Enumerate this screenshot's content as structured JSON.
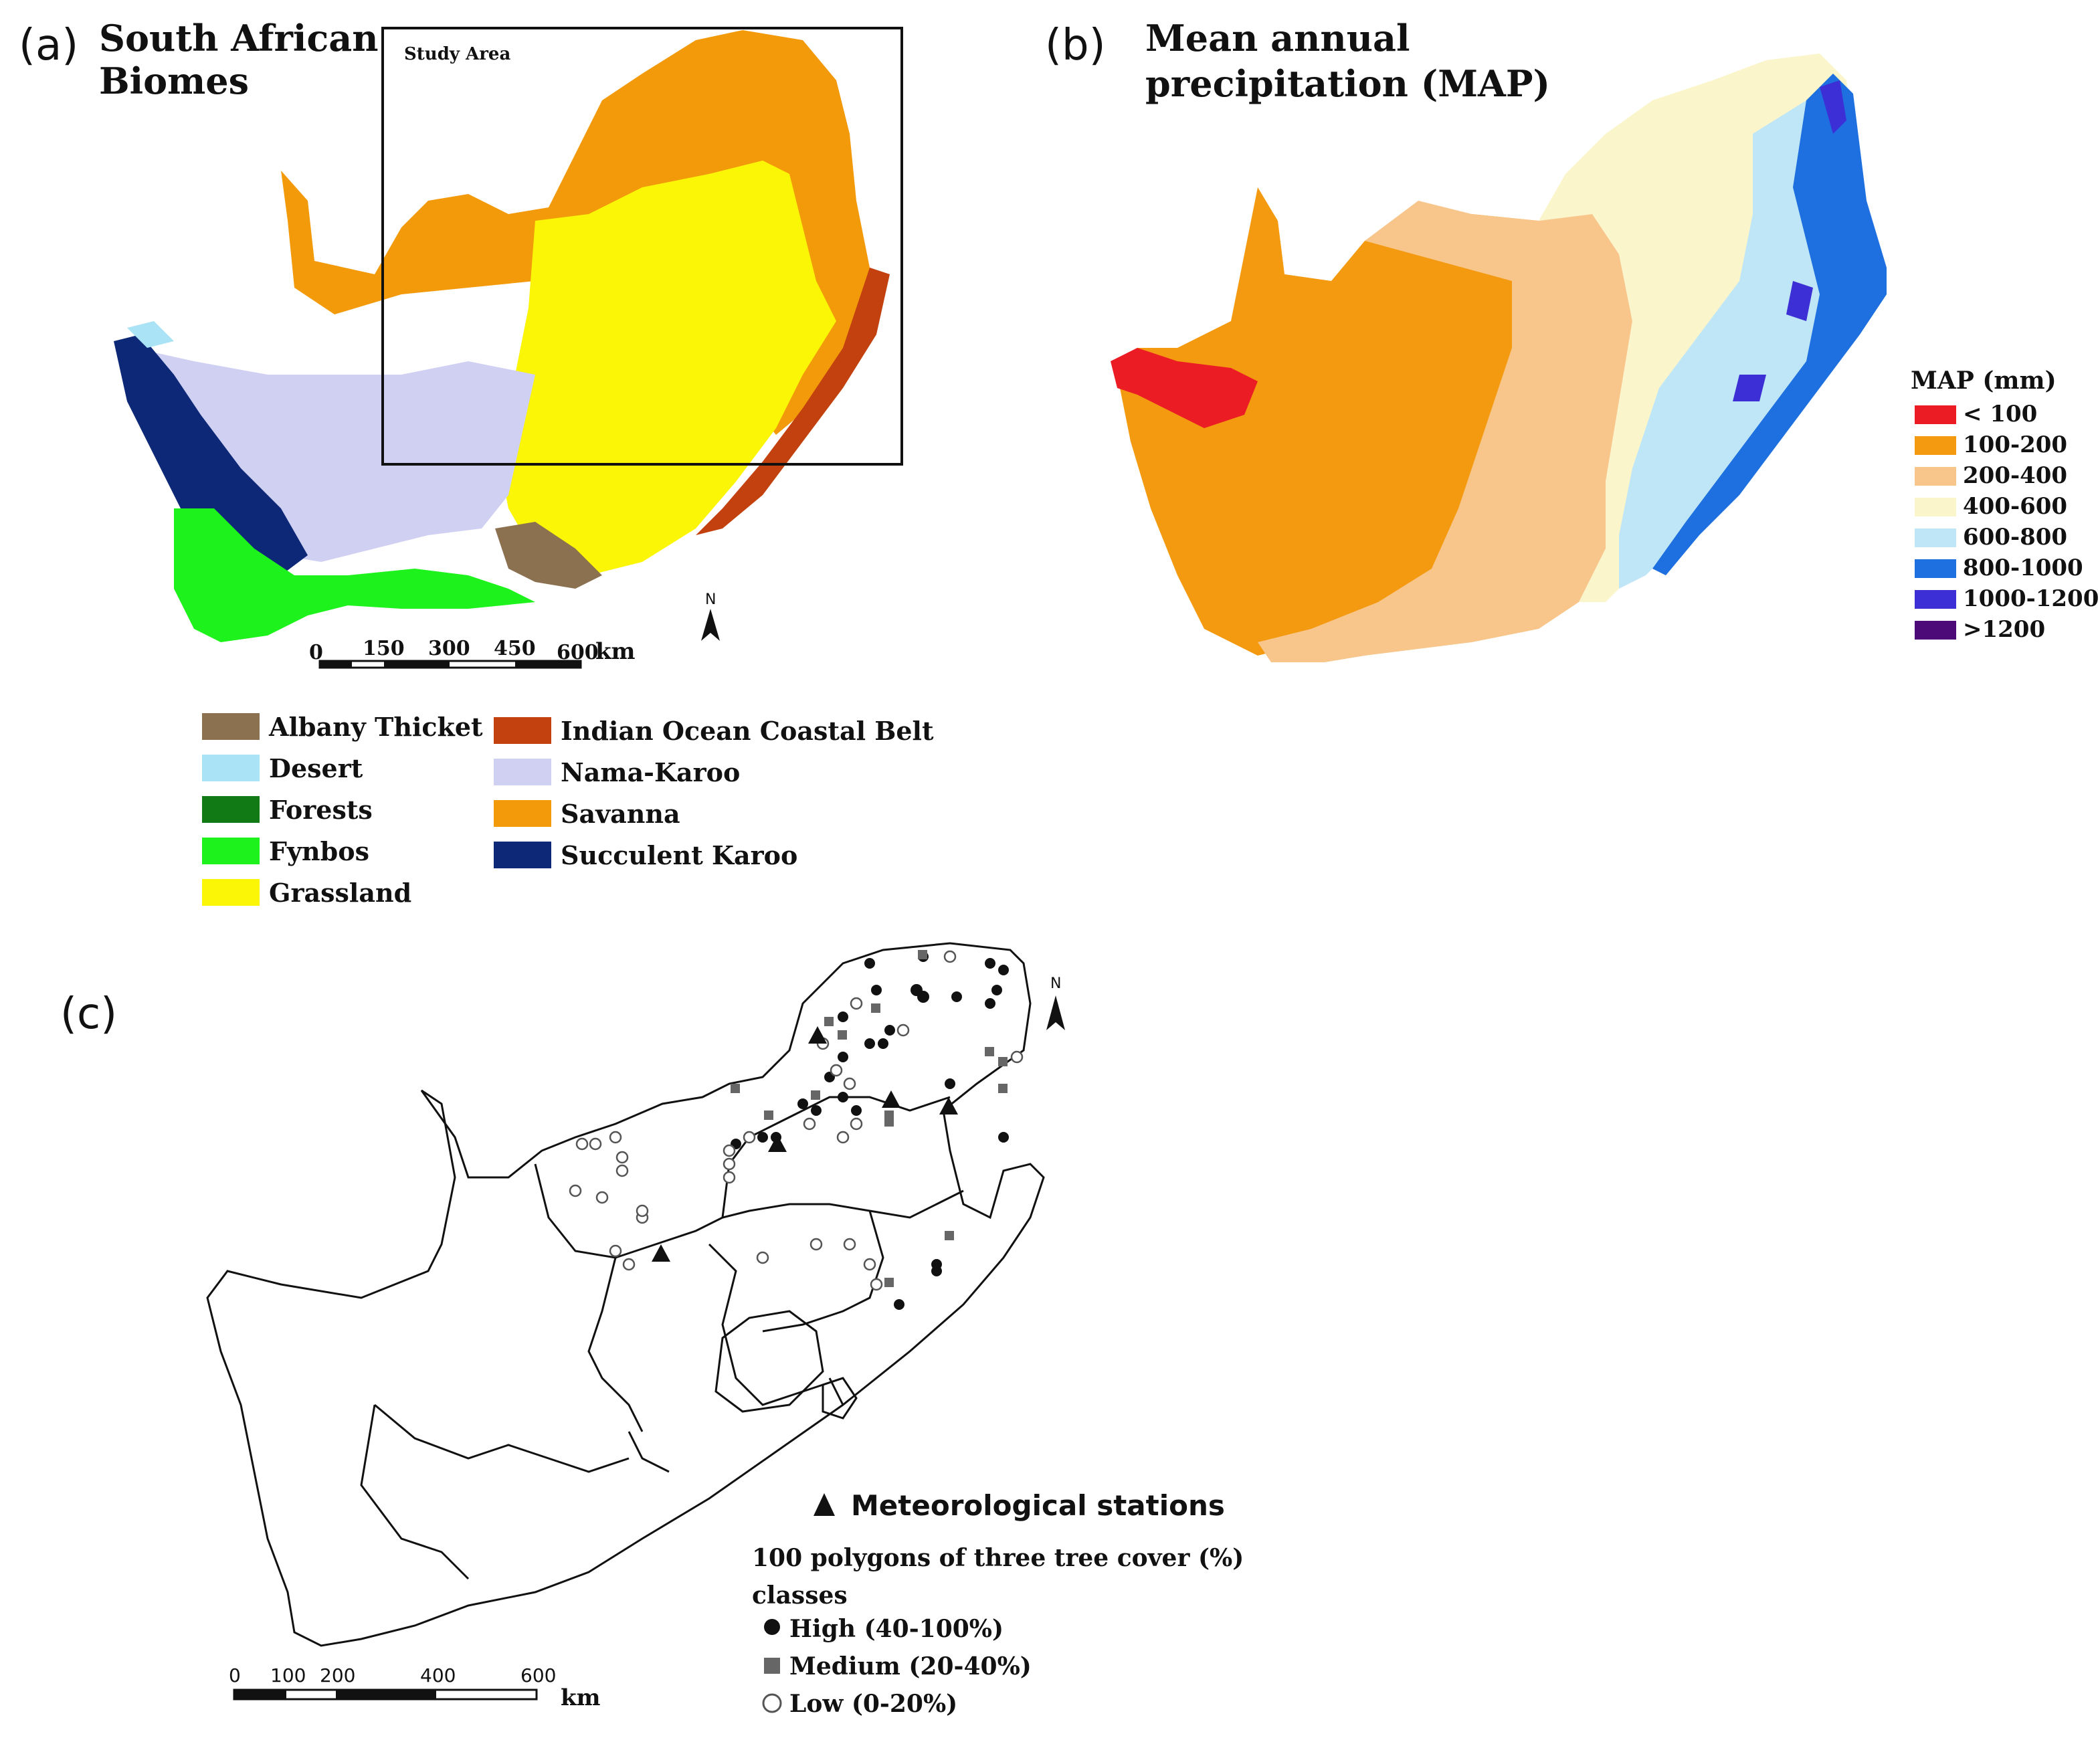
{
  "panel_a": {
    "letter": "(a)",
    "title_line1": "South African",
    "title_line2": "Biomes",
    "study_area_label": "Study Area",
    "north_label": "N",
    "scale": {
      "ticks": [
        "0",
        "150",
        "300",
        "450",
        "600"
      ],
      "unit": "km"
    },
    "legend": [
      {
        "label": "Albany Thicket",
        "color": "#8b7150"
      },
      {
        "label": "Desert",
        "color": "#a9e3f5"
      },
      {
        "label": "Forests",
        "color": "#127a14"
      },
      {
        "label": "Fynbos",
        "color": "#1ef21c"
      },
      {
        "label": "Grassland",
        "color": "#fbf506"
      },
      {
        "label": "Indian Ocean Coastal Belt",
        "color": "#c2410f"
      },
      {
        "label": "Nama-Karoo",
        "color": "#cfd0f2"
      },
      {
        "label": "Savanna",
        "color": "#f39a0b"
      },
      {
        "label": "Succulent Karoo",
        "color": "#0c2877"
      }
    ]
  },
  "panel_b": {
    "letter": "(b)",
    "title_line1": "Mean annual",
    "title_line2": "precipitation (MAP)",
    "legend_title": "MAP (mm)",
    "legend": [
      {
        "label": "< 100",
        "color": "#ec1c24"
      },
      {
        "label": "100-200",
        "color": "#f39a10"
      },
      {
        "label": "200-400",
        "color": "#f8c58a"
      },
      {
        "label": "400-600",
        "color": "#fbf5cc"
      },
      {
        "label": "600-800",
        "color": "#bfe6f6"
      },
      {
        "label": "800-1000",
        "color": "#1e6fe0"
      },
      {
        "label": "1000-1200",
        "color": "#3d2fd6"
      },
      {
        "label": ">1200",
        "color": "#4b0a78"
      }
    ]
  },
  "panel_c": {
    "letter": "(c)",
    "north_label": "N",
    "scale": {
      "ticks": [
        "0",
        "100",
        "200",
        "400",
        "600"
      ],
      "unit": "km"
    },
    "met_label": "Meteorological stations",
    "polygons_title_line1": "100 polygons of three tree cover (%)",
    "polygons_title_line2": "classes",
    "classes": [
      {
        "label": "High (40-100%)",
        "symbol": "filled-circle"
      },
      {
        "label": "Medium (20-40%)",
        "symbol": "grey-square"
      },
      {
        "label": "Low (0-20%)",
        "symbol": "open-circle"
      }
    ]
  }
}
